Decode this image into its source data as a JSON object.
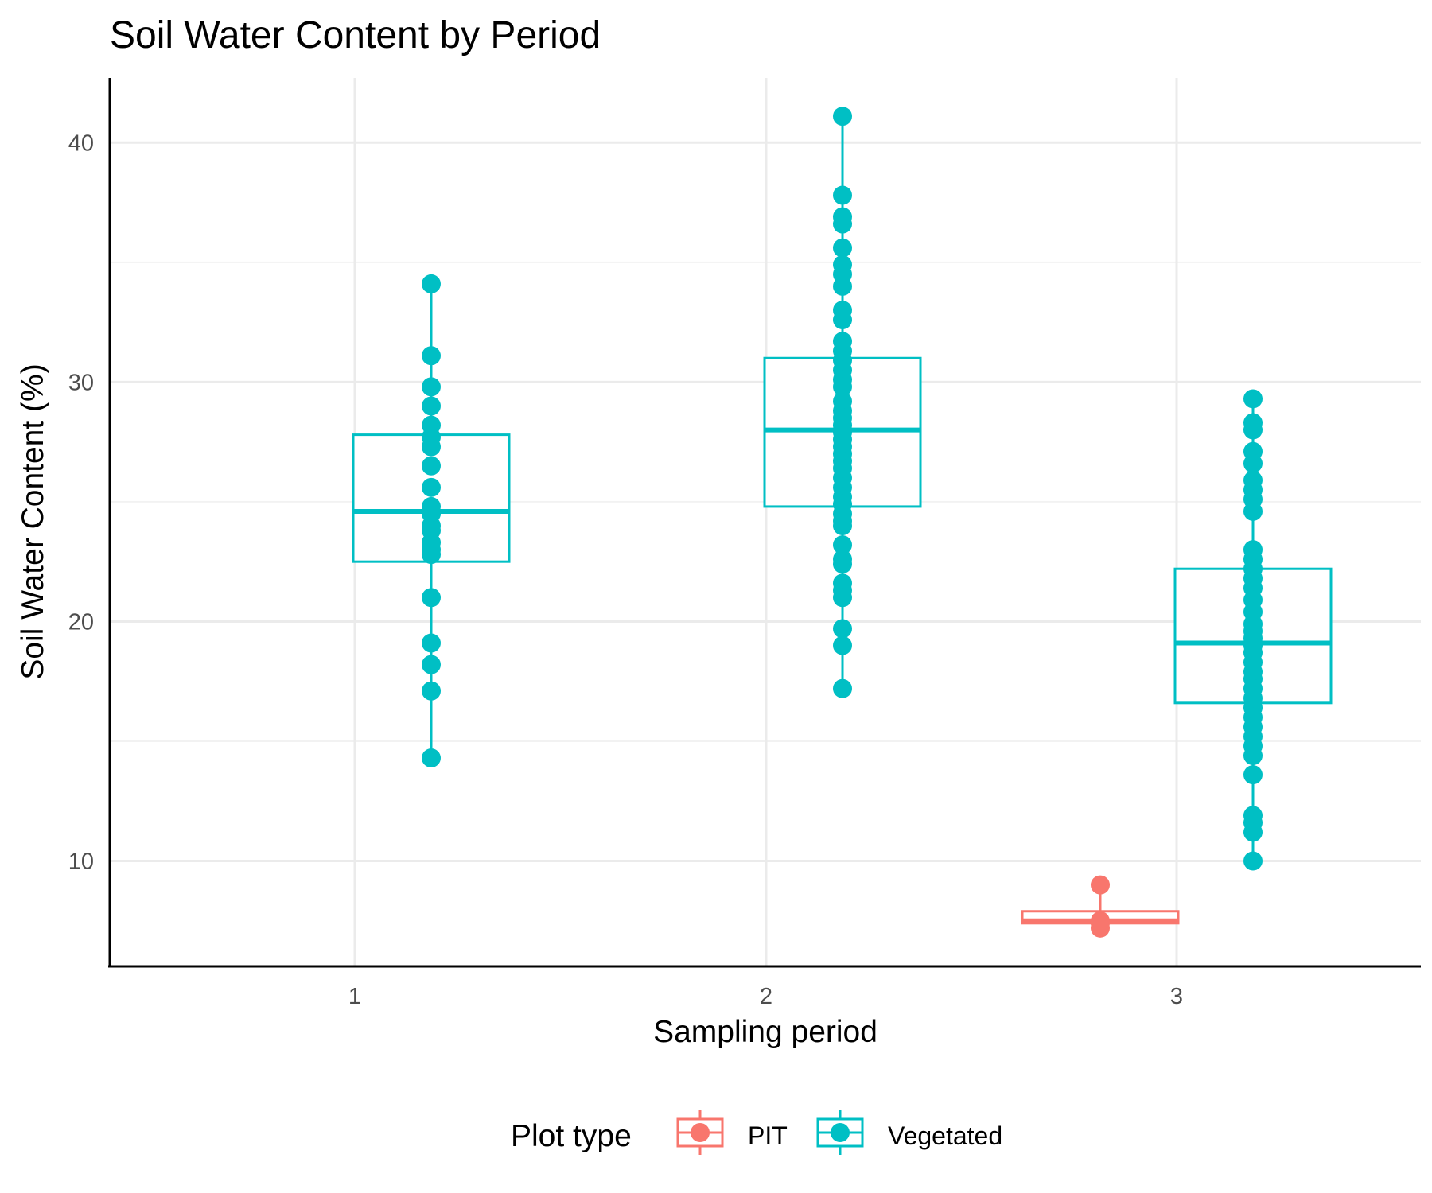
{
  "chart_data": {
    "type": "box",
    "title": "Soil Water Content by Period",
    "xlabel": "Sampling period",
    "ylabel": "Soil Water Content (%)",
    "categories": [
      "1",
      "2",
      "3"
    ],
    "y_ticks": [
      10,
      20,
      30,
      40
    ],
    "ylim": [
      5.6,
      42.7
    ],
    "grid": true,
    "legend": {
      "title": "Plot type",
      "position": "bottom",
      "entries": [
        "PIT",
        "Vegetated"
      ]
    },
    "series": [
      {
        "name": "PIT",
        "color": "#F8766D",
        "groups": [
          {
            "category": "3",
            "box": {
              "q1": 7.4,
              "median": 7.5,
              "q3": 7.9,
              "whisker_low": 7.2,
              "whisker_high": 9.0
            },
            "points": [
              9.0,
              7.5,
              7.4,
              7.2
            ]
          }
        ]
      },
      {
        "name": "Vegetated",
        "color": "#00BFC4",
        "groups": [
          {
            "category": "1",
            "box": {
              "q1": 22.5,
              "median": 24.6,
              "q3": 27.8,
              "whisker_low": 14.3,
              "whisker_high": 34.1
            },
            "points": [
              34.1,
              31.1,
              29.8,
              29.0,
              28.2,
              27.7,
              27.3,
              26.5,
              25.6,
              24.8,
              24.5,
              24.0,
              23.8,
              23.3,
              23.0,
              22.8,
              21.0,
              19.1,
              18.2,
              17.1,
              14.3
            ]
          },
          {
            "category": "2",
            "box": {
              "q1": 24.8,
              "median": 28.0,
              "q3": 31.0,
              "whisker_low": 17.2,
              "whisker_high": 41.1
            },
            "points": [
              41.1,
              37.8,
              36.9,
              36.6,
              35.6,
              34.9,
              34.5,
              34.0,
              33.0,
              32.6,
              31.7,
              31.3,
              30.9,
              30.5,
              30.1,
              29.8,
              29.2,
              28.8,
              28.5,
              28.2,
              27.9,
              27.6,
              27.3,
              27.0,
              26.7,
              26.4,
              26.0,
              25.6,
              25.2,
              24.9,
              24.5,
              24.2,
              24.0,
              23.2,
              22.6,
              22.4,
              21.6,
              21.3,
              21.0,
              19.7,
              19.0,
              17.2
            ]
          },
          {
            "category": "3",
            "box": {
              "q1": 16.6,
              "median": 19.1,
              "q3": 22.2,
              "whisker_low": 10.0,
              "whisker_high": 29.3
            },
            "points": [
              29.3,
              28.3,
              28.0,
              27.1,
              26.6,
              25.9,
              25.5,
              25.1,
              24.6,
              23.0,
              22.6,
              22.2,
              21.8,
              21.4,
              20.9,
              20.4,
              19.9,
              19.6,
              19.3,
              19.0,
              18.7,
              18.3,
              17.9,
              17.6,
              17.2,
              16.8,
              16.4,
              16.0,
              15.6,
              15.2,
              14.8,
              14.4,
              13.6,
              11.9,
              11.6,
              11.2,
              10.0
            ]
          }
        ]
      }
    ]
  }
}
